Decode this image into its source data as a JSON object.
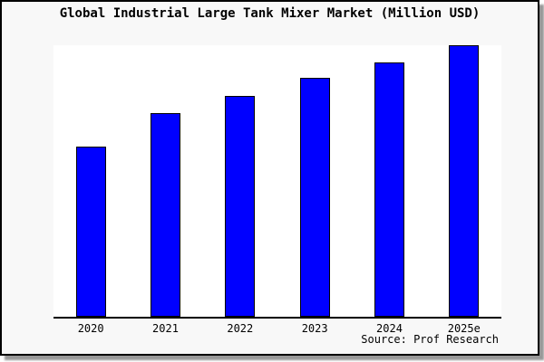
{
  "frame": {
    "background": "#f8f8f8",
    "border_color": "#000000",
    "shadow_color": "#989898"
  },
  "chart_data": {
    "type": "bar",
    "title": "Global Industrial Large Tank Mixer Market (Million USD)",
    "categories": [
      "2020",
      "2021",
      "2022",
      "2023",
      "2024",
      "2025e"
    ],
    "values": [
      189,
      226,
      245,
      265,
      282,
      301
    ],
    "value_note": "no y-axis ticks or gridlines shown; values are relative bar heights (px) read from the plot",
    "xlabel": "",
    "ylabel": "",
    "ylim": [
      0,
      301
    ],
    "grid": false,
    "legend": false,
    "plot_bg": "#ffffff",
    "axis_color": "#000000",
    "bar_color": "#0000ff",
    "bar_border_color": "#000000"
  },
  "source": {
    "label": "Source: Prof Research"
  }
}
